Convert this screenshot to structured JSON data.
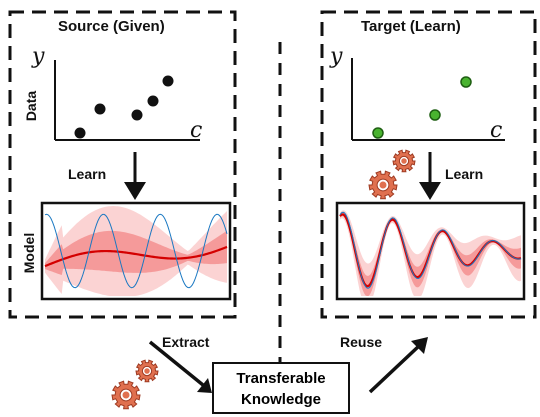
{
  "source": {
    "title": "Source (Given)",
    "data_label": "Data",
    "model_label": "Model",
    "learn_label": "Learn",
    "y_axis": "y",
    "x_axis": "c"
  },
  "target": {
    "title": "Target (Learn)",
    "learn_label": "Learn",
    "y_axis": "y",
    "x_axis": "c"
  },
  "flow": {
    "extract_label": "Extract",
    "reuse_label": "Reuse",
    "knowledge_line1": "Transferable",
    "knowledge_line2": "Knowledge"
  },
  "colors": {
    "point_source": "#111111",
    "point_target": "#3fae2a",
    "gear": "#e0704f",
    "band": "#f4a3a3",
    "mean": "#d40000",
    "truth": "#1a78c2"
  }
}
